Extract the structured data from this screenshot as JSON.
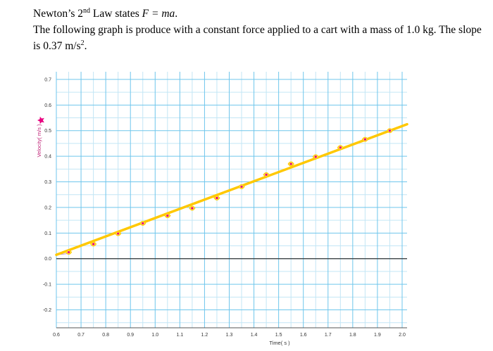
{
  "intro": {
    "law_prefix": "Newton’s 2",
    "law_sup": "nd",
    "law_suffix": " Law states ",
    "equation": "F = ma",
    "period": ".",
    "paragraph_a": "The following graph is produce with a constant force applied to a cart with a mass of 1.0 kg. The slope is 0.37 m/s",
    "paragraph_sup": "2",
    "paragraph_b": "."
  },
  "colors": {
    "grid_major": "#6fc6ec",
    "grid_minor": "#c3e6f5",
    "fit_line": "#ffc800",
    "points": "#e8007f",
    "zero_line": "#333333",
    "ylabel": "#c0287a",
    "tick_text": "#333333"
  },
  "chart_data": {
    "type": "scatter",
    "title": "",
    "xlabel": "Time( s )",
    "ylabel": "Velocity( m/s )",
    "xlim": [
      0.6,
      2.02
    ],
    "ylim": [
      -0.27,
      0.73
    ],
    "x_ticks": [
      "0.6",
      "0.7",
      "0.8",
      "0.9",
      "1.0",
      "1.1",
      "1.2",
      "1.3",
      "1.4",
      "1.5",
      "1.6",
      "1.7",
      "1.8",
      "1.9",
      "2.0"
    ],
    "y_ticks": [
      "0.7",
      "0.6",
      "0.5",
      "0.4",
      "0.3",
      "0.2",
      "0.1",
      "0.0",
      "-0.1",
      "-0.2"
    ],
    "grid": true,
    "series": [
      {
        "points": [
          [
            0.65,
            0.025
          ],
          [
            0.75,
            0.057
          ],
          [
            0.85,
            0.098
          ],
          [
            0.95,
            0.138
          ],
          [
            1.05,
            0.168
          ],
          [
            1.15,
            0.197
          ],
          [
            1.25,
            0.237
          ],
          [
            1.35,
            0.281
          ],
          [
            1.45,
            0.328
          ],
          [
            1.55,
            0.37
          ],
          [
            1.65,
            0.398
          ],
          [
            1.75,
            0.434
          ],
          [
            1.85,
            0.466
          ],
          [
            1.95,
            0.5
          ]
        ]
      }
    ],
    "fit_line": {
      "x": [
        0.6,
        2.02
      ],
      "y": [
        0.015,
        0.525
      ]
    }
  }
}
